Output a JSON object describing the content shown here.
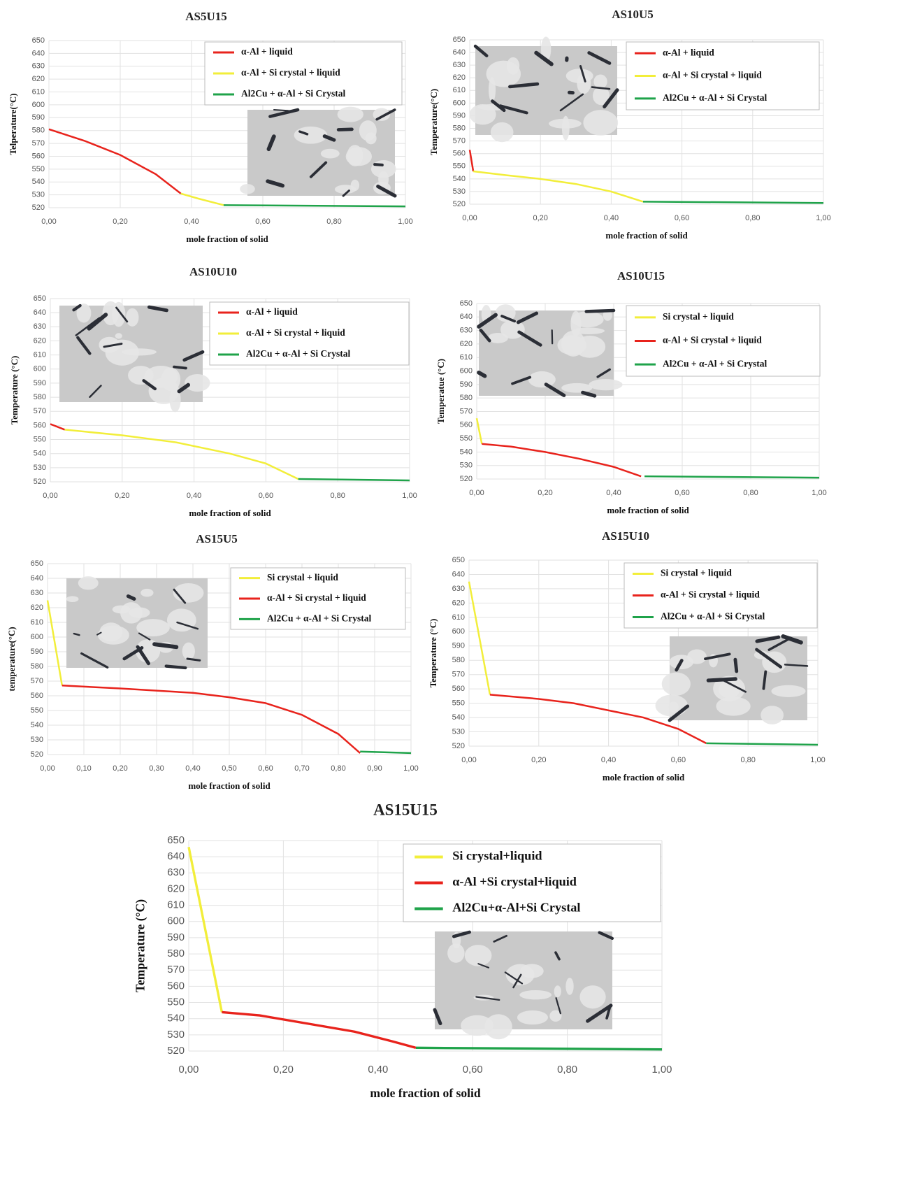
{
  "chart_data": [
    {
      "type": "line",
      "title": "AS5U15",
      "x_label": "mole fraction of solid",
      "y_label": "Telperature(°C)",
      "xlim": [
        0,
        1
      ],
      "xticks": [
        {
          "value": 0,
          "label": "0,00"
        },
        {
          "value": 0.2,
          "label": "0,20"
        },
        {
          "value": 0.4,
          "label": "0,40"
        },
        {
          "value": 0.6,
          "label": "0,60"
        },
        {
          "value": 0.8,
          "label": "0,80"
        },
        {
          "value": 1,
          "label": "1,00"
        }
      ],
      "ylim": [
        520,
        650
      ],
      "yticks": [
        520,
        530,
        540,
        550,
        560,
        570,
        580,
        590,
        600,
        610,
        620,
        630,
        640,
        650
      ],
      "grid": true,
      "legend": "upper right",
      "series": [
        {
          "name": "α-Al + liquid",
          "color": "#e8231c",
          "x": [
            0,
            0.1,
            0.2,
            0.3,
            0.37
          ],
          "values": [
            581,
            572,
            561,
            546,
            531
          ]
        },
        {
          "name": "α-Al + Si crystal + liquid",
          "color": "#f2ee3a",
          "x": [
            0.37,
            0.42,
            0.49
          ],
          "values": [
            531,
            527,
            522
          ]
        },
        {
          "name": "Al2Cu + α-Al + Si Crystal",
          "color": "#1fa34a",
          "x": [
            0.49,
            1
          ],
          "values": [
            522,
            521
          ]
        }
      ]
    },
    {
      "type": "line",
      "title": "AS10U5",
      "x_label": "mole fraction of solid",
      "y_label": "Temperature(°C)",
      "xlim": [
        0,
        1
      ],
      "xticks": [
        {
          "value": 0,
          "label": "0,00"
        },
        {
          "value": 0.2,
          "label": "0,20"
        },
        {
          "value": 0.4,
          "label": "0,40"
        },
        {
          "value": 0.6,
          "label": "0,60"
        },
        {
          "value": 0.8,
          "label": "0,80"
        },
        {
          "value": 1,
          "label": "1,00"
        }
      ],
      "ylim": [
        520,
        650
      ],
      "yticks": [
        520,
        530,
        540,
        550,
        560,
        570,
        580,
        590,
        600,
        610,
        620,
        630,
        640,
        650
      ],
      "grid": true,
      "legend": "upper right",
      "series": [
        {
          "name": "α-Al + liquid",
          "color": "#e8231c",
          "x": [
            0,
            0.01
          ],
          "values": [
            563,
            546
          ]
        },
        {
          "name": "α-Al + Si crystal + liquid",
          "color": "#f2ee3a",
          "x": [
            0.01,
            0.1,
            0.2,
            0.3,
            0.4,
            0.49
          ],
          "values": [
            546,
            543,
            540,
            536,
            530,
            522
          ]
        },
        {
          "name": "Al2Cu + α-Al + Si Crystal",
          "color": "#1fa34a",
          "x": [
            0.49,
            1
          ],
          "values": [
            522,
            521
          ]
        }
      ]
    },
    {
      "type": "line",
      "title": "AS10U10",
      "x_label": "mole fraction of solid",
      "y_label": "Temperature (°C)",
      "xlim": [
        0,
        1
      ],
      "xticks": [
        {
          "value": 0,
          "label": "0,00"
        },
        {
          "value": 0.2,
          "label": "0,20"
        },
        {
          "value": 0.4,
          "label": "0,40"
        },
        {
          "value": 0.6,
          "label": "0,60"
        },
        {
          "value": 0.8,
          "label": "0,80"
        },
        {
          "value": 1,
          "label": "1,00"
        }
      ],
      "ylim": [
        520,
        650
      ],
      "yticks": [
        520,
        530,
        540,
        550,
        560,
        570,
        580,
        590,
        600,
        610,
        620,
        630,
        640,
        650
      ],
      "grid": true,
      "legend": "upper right",
      "series": [
        {
          "name": "α-Al + liquid",
          "color": "#e8231c",
          "x": [
            0,
            0.04
          ],
          "values": [
            561,
            557
          ]
        },
        {
          "name": "α-Al + Si crystal + liquid",
          "color": "#f2ee3a",
          "x": [
            0.04,
            0.2,
            0.35,
            0.5,
            0.6,
            0.69
          ],
          "values": [
            557,
            553,
            548,
            540,
            533,
            522
          ]
        },
        {
          "name": "Al2Cu + α-Al + Si Crystal",
          "color": "#1fa34a",
          "x": [
            0.69,
            1
          ],
          "values": [
            522,
            521
          ]
        }
      ]
    },
    {
      "type": "line",
      "title": "AS10U15",
      "x_label": "mole fraction of solid",
      "y_label": "Temperatue (°C)",
      "xlim": [
        0,
        1
      ],
      "xticks": [
        {
          "value": 0,
          "label": "0,00"
        },
        {
          "value": 0.2,
          "label": "0,20"
        },
        {
          "value": 0.4,
          "label": "0,40"
        },
        {
          "value": 0.6,
          "label": "0,60"
        },
        {
          "value": 0.8,
          "label": "0,80"
        },
        {
          "value": 1,
          "label": "1,00"
        }
      ],
      "ylim": [
        520,
        650
      ],
      "yticks": [
        520,
        530,
        540,
        550,
        560,
        570,
        580,
        590,
        600,
        610,
        620,
        630,
        640,
        650
      ],
      "grid": true,
      "legend": "upper right",
      "series": [
        {
          "name": "Si crystal + liquid",
          "color": "#f2ee3a",
          "x": [
            0,
            0.015
          ],
          "values": [
            565,
            546
          ]
        },
        {
          "name": "α-Al  + Si crystal + liquid",
          "color": "#e8231c",
          "x": [
            0.015,
            0.1,
            0.2,
            0.3,
            0.4,
            0.48
          ],
          "values": [
            546,
            544,
            540,
            535,
            529,
            522
          ]
        },
        {
          "name": "Al2Cu + α-Al + Si Crystal",
          "color": "#1fa34a",
          "x": [
            0.49,
            1
          ],
          "values": [
            522,
            521
          ]
        }
      ]
    },
    {
      "type": "line",
      "title": "AS15U5",
      "x_label": "mole fraction of solid",
      "y_label": "temperature(°C)",
      "xlim": [
        0,
        1
      ],
      "xticks": [
        {
          "value": 0,
          "label": "0,00"
        },
        {
          "value": 0.1,
          "label": "0,10"
        },
        {
          "value": 0.2,
          "label": "0,20"
        },
        {
          "value": 0.3,
          "label": "0,30"
        },
        {
          "value": 0.4,
          "label": "0,40"
        },
        {
          "value": 0.5,
          "label": "0,50"
        },
        {
          "value": 0.6,
          "label": "0,60"
        },
        {
          "value": 0.7,
          "label": "0,70"
        },
        {
          "value": 0.8,
          "label": "0,80"
        },
        {
          "value": 0.9,
          "label": "0,90"
        },
        {
          "value": 1,
          "label": "1,00"
        }
      ],
      "ylim": [
        520,
        650
      ],
      "yticks": [
        520,
        530,
        540,
        550,
        560,
        570,
        580,
        590,
        600,
        610,
        620,
        630,
        640,
        650
      ],
      "grid": true,
      "legend": "upper right",
      "series": [
        {
          "name": "Si crystal + liquid",
          "color": "#f2ee3a",
          "x": [
            0,
            0.04
          ],
          "values": [
            625,
            567
          ]
        },
        {
          "name": "α-Al  + Si crystal + liquid",
          "color": "#e8231c",
          "x": [
            0.04,
            0.2,
            0.4,
            0.5,
            0.6,
            0.7,
            0.8,
            0.86
          ],
          "values": [
            567,
            565,
            562,
            559,
            555,
            547,
            534,
            521
          ]
        },
        {
          "name": "Al2Cu + α-Al + Si Crystal",
          "color": "#1fa34a",
          "x": [
            0.86,
            1
          ],
          "values": [
            522,
            521
          ]
        }
      ]
    },
    {
      "type": "line",
      "title": "AS15U10",
      "x_label": "mole fraction of solid",
      "y_label": "Temperature (°C)",
      "xlim": [
        0,
        1
      ],
      "xticks": [
        {
          "value": 0,
          "label": "0,00"
        },
        {
          "value": 0.2,
          "label": "0,20"
        },
        {
          "value": 0.4,
          "label": "0,40"
        },
        {
          "value": 0.6,
          "label": "0,60"
        },
        {
          "value": 0.8,
          "label": "0,80"
        },
        {
          "value": 1,
          "label": "1,00"
        }
      ],
      "ylim": [
        520,
        650
      ],
      "yticks": [
        520,
        530,
        540,
        550,
        560,
        570,
        580,
        590,
        600,
        610,
        620,
        630,
        640,
        650
      ],
      "grid": true,
      "legend": "upper right",
      "series": [
        {
          "name": "Si crystal + liquid",
          "color": "#f2ee3a",
          "x": [
            0,
            0.06
          ],
          "values": [
            635,
            556
          ]
        },
        {
          "name": "α-Al  + Si crystal + liquid",
          "color": "#e8231c",
          "x": [
            0.06,
            0.2,
            0.3,
            0.4,
            0.5,
            0.6,
            0.68
          ],
          "values": [
            556,
            553,
            550,
            545,
            540,
            532,
            522
          ]
        },
        {
          "name": "Al2Cu + α-Al + Si Crystal",
          "color": "#1fa34a",
          "x": [
            0.68,
            1
          ],
          "values": [
            522,
            521
          ]
        }
      ]
    },
    {
      "type": "line",
      "title": "AS15U15",
      "x_label": "mole fraction of solid",
      "y_label": "Temperature (°C)",
      "xlim": [
        0,
        1
      ],
      "xticks": [
        {
          "value": 0,
          "label": "0,00"
        },
        {
          "value": 0.2,
          "label": "0,20"
        },
        {
          "value": 0.4,
          "label": "0,40"
        },
        {
          "value": 0.6,
          "label": "0,60"
        },
        {
          "value": 0.8,
          "label": "0,80"
        },
        {
          "value": 1,
          "label": "1,00"
        }
      ],
      "ylim": [
        520,
        650
      ],
      "yticks": [
        520,
        530,
        540,
        550,
        560,
        570,
        580,
        590,
        600,
        610,
        620,
        630,
        640,
        650
      ],
      "grid": true,
      "legend": "upper right",
      "series": [
        {
          "name": "Si crystal+liquid",
          "color": "#f2ee3a",
          "x": [
            0,
            0.07
          ],
          "values": [
            646,
            544
          ]
        },
        {
          "name": "α-Al +Si crystal+liquid",
          "color": "#e8231c",
          "x": [
            0.07,
            0.15,
            0.25,
            0.35,
            0.43,
            0.48
          ],
          "values": [
            544,
            542,
            537,
            532,
            526,
            522
          ]
        },
        {
          "name": "Al2Cu+α-Al+Si Crystal",
          "color": "#1fa34a",
          "x": [
            0.48,
            1
          ],
          "values": [
            522,
            521
          ]
        }
      ]
    }
  ]
}
